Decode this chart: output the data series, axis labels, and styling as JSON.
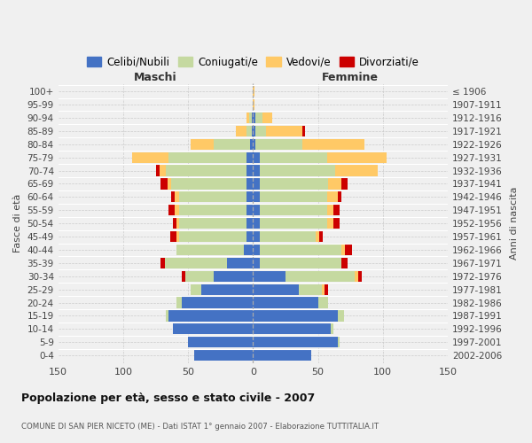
{
  "age_groups": [
    "0-4",
    "5-9",
    "10-14",
    "15-19",
    "20-24",
    "25-29",
    "30-34",
    "35-39",
    "40-44",
    "45-49",
    "50-54",
    "55-59",
    "60-64",
    "65-69",
    "70-74",
    "75-79",
    "80-84",
    "85-89",
    "90-94",
    "95-99",
    "100+"
  ],
  "birth_years": [
    "2002-2006",
    "1997-2001",
    "1992-1996",
    "1987-1991",
    "1982-1986",
    "1977-1981",
    "1972-1976",
    "1967-1971",
    "1962-1966",
    "1957-1961",
    "1952-1956",
    "1947-1951",
    "1942-1946",
    "1937-1941",
    "1932-1936",
    "1927-1931",
    "1922-1926",
    "1917-1921",
    "1912-1916",
    "1907-1911",
    "≤ 1906"
  ],
  "maschi_celibe": [
    45,
    50,
    62,
    65,
    55,
    40,
    30,
    20,
    7,
    5,
    5,
    5,
    5,
    5,
    5,
    5,
    2,
    1,
    1,
    0,
    0
  ],
  "maschi_coniugato": [
    0,
    0,
    0,
    2,
    4,
    8,
    22,
    48,
    52,
    52,
    52,
    52,
    52,
    58,
    62,
    60,
    28,
    4,
    2,
    0,
    0
  ],
  "maschi_vedovo": [
    0,
    0,
    0,
    0,
    0,
    0,
    0,
    0,
    0,
    2,
    2,
    3,
    3,
    3,
    5,
    28,
    18,
    8,
    2,
    0,
    0
  ],
  "maschi_divorziato": [
    0,
    0,
    0,
    0,
    0,
    0,
    3,
    3,
    0,
    5,
    3,
    5,
    3,
    5,
    3,
    0,
    0,
    0,
    0,
    0,
    0
  ],
  "femmine_nubile": [
    45,
    65,
    60,
    65,
    50,
    35,
    25,
    5,
    5,
    5,
    5,
    5,
    5,
    5,
    5,
    5,
    2,
    2,
    2,
    0,
    0
  ],
  "femmine_coniugata": [
    0,
    2,
    2,
    5,
    8,
    18,
    53,
    63,
    63,
    43,
    52,
    52,
    52,
    53,
    58,
    52,
    36,
    8,
    5,
    0,
    0
  ],
  "femmine_vedova": [
    0,
    0,
    0,
    0,
    0,
    2,
    3,
    0,
    3,
    3,
    5,
    5,
    8,
    10,
    33,
    46,
    48,
    28,
    8,
    1,
    1
  ],
  "femmine_divorziata": [
    0,
    0,
    0,
    0,
    0,
    3,
    3,
    5,
    5,
    3,
    5,
    5,
    3,
    5,
    0,
    0,
    0,
    2,
    0,
    0,
    0
  ],
  "color_celibe": "#4472c4",
  "color_coniugato": "#c5d9a0",
  "color_vedovo": "#ffc966",
  "color_divorziato": "#cc0000",
  "legend_labels": [
    "Celibi/Nubili",
    "Coniugati/e",
    "Vedovi/e",
    "Divorziati/e"
  ],
  "xlim": 150,
  "title": "Popolazione per età, sesso e stato civile - 2007",
  "subtitle": "COMUNE DI SAN PIER NICETO (ME) - Dati ISTAT 1° gennaio 2007 - Elaborazione TUTTITALIA.IT",
  "ylabel_left": "Fasce di età",
  "ylabel_right": "Anni di nascita",
  "label_maschi": "Maschi",
  "label_femmine": "Femmine",
  "bg_color": "#f0f0f0"
}
